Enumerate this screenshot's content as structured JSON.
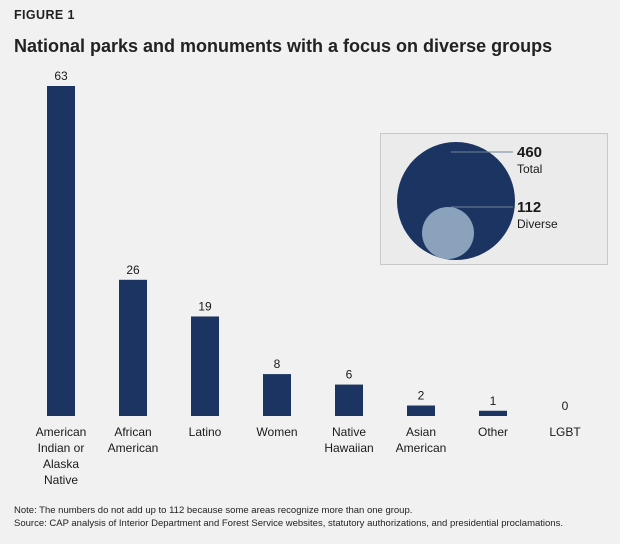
{
  "header": {
    "eyebrow": "FIGURE 1",
    "title": "National parks and monuments with a focus on diverse groups"
  },
  "chart_data": {
    "type": "bar",
    "categories": [
      [
        "American",
        "Indian or",
        "Alaska",
        "Native"
      ],
      [
        "African",
        "American"
      ],
      [
        "Latino"
      ],
      [
        "Women"
      ],
      [
        "Native",
        "Hawaiian"
      ],
      [
        "Asian",
        "American"
      ],
      [
        "Other"
      ],
      [
        "LGBT"
      ]
    ],
    "values": [
      63,
      26,
      19,
      8,
      6,
      2,
      1,
      0
    ],
    "ylim": [
      0,
      63
    ],
    "bar_color": "#1b3461",
    "grid": false,
    "legend": "none"
  },
  "inset": {
    "type": "nested-circles",
    "total": {
      "value": "460",
      "label": "Total",
      "color": "#1b3461"
    },
    "diverse": {
      "value": "112",
      "label": "Diverse",
      "color": "#8aa2bb"
    }
  },
  "footer": {
    "note": "Note: The numbers do not add up to 112 because some areas recognize more than one group.",
    "source": "Source: CAP analysis of Interior Department and Forest Service websites, statutory authorizations, and presidential proclamations."
  }
}
